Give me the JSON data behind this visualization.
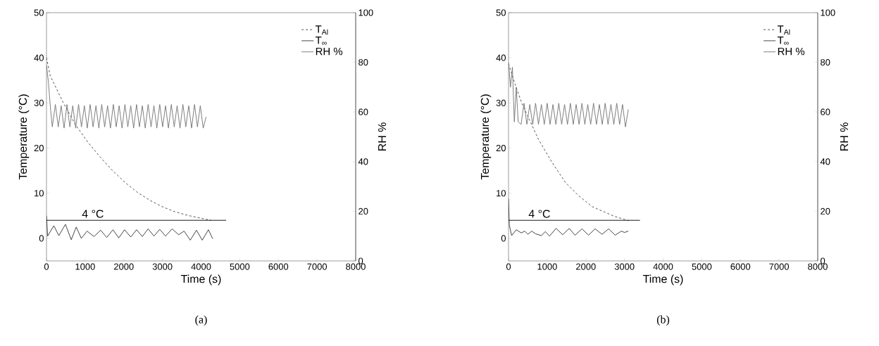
{
  "chart_data": [
    {
      "type": "line",
      "title": "(a)",
      "xlabel": "Time (s)",
      "ylabel": "Temperature (°C)",
      "y2label": "RH %",
      "xlim": [
        0,
        8000
      ],
      "xticks": [
        0,
        1000,
        2000,
        3000,
        4000,
        5000,
        6000,
        7000,
        8000
      ],
      "ylim": [
        -5,
        50
      ],
      "yticks": [
        0,
        10,
        20,
        30,
        40,
        50
      ],
      "y2lim": [
        0,
        100
      ],
      "y2ticks": [
        0,
        20,
        40,
        60,
        80,
        100
      ],
      "legend": "top right",
      "annotations": [
        {
          "text": "4 °C",
          "x": 1200,
          "y": 4
        }
      ],
      "series": [
        {
          "name": "T$_{Al}$",
          "color": "#404040",
          "line_style": "dashed",
          "x": [
            0,
            97,
            420,
            740,
            1070,
            1390,
            1710,
            2030,
            2350,
            2680,
            3000,
            3320,
            3650,
            3970,
            4260
          ],
          "values": [
            40,
            36,
            30.3,
            25.3,
            21.3,
            18,
            15,
            12.4,
            10.2,
            8.4,
            7,
            5.9,
            5.1,
            4.5,
            4.0
          ]
        },
        {
          "name": "T$_{∞}$",
          "color": "#303030",
          "line_style": "solid",
          "x": [
            0,
            30,
            190,
            320,
            490,
            640,
            770,
            900,
            1050,
            1230,
            1400,
            1560,
            1720,
            1870,
            2020,
            2180,
            2330,
            2480,
            2630,
            2780,
            2930,
            3080,
            3250,
            3420,
            3560,
            3720,
            3880,
            4030,
            4190,
            4300
          ],
          "values": [
            5,
            0.5,
            2.8,
            0.6,
            3.1,
            -0.3,
            2.5,
            0,
            1.6,
            0.4,
            1.8,
            0.2,
            1.9,
            0.1,
            1.9,
            0.3,
            1.9,
            0.4,
            2.1,
            0.5,
            2.0,
            0.5,
            2.1,
            0.8,
            1.6,
            -0.4,
            1.8,
            -0.4,
            1.9,
            -0.1
          ]
        },
        {
          "name": "RH %",
          "color": "#707070",
          "line_style": "solid",
          "axis": "y2",
          "x": [
            0,
            50,
            100,
            150,
            230,
            305,
            380,
            455,
            530,
            605,
            680,
            755,
            830,
            905,
            980,
            1055,
            1130,
            1205,
            1280,
            1355,
            1430,
            1505,
            1580,
            1655,
            1730,
            1805,
            1880,
            1955,
            2030,
            2105,
            2180,
            2255,
            2330,
            2405,
            2480,
            2555,
            2630,
            2705,
            2780,
            2855,
            2930,
            3005,
            3080,
            3155,
            3230,
            3305,
            3380,
            3455,
            3530,
            3605,
            3680,
            3755,
            3830,
            3905,
            3980,
            4055,
            4130
          ],
          "values": [
            79,
            72,
            62,
            54,
            63,
            54,
            62.5,
            53.5,
            63,
            54,
            62.5,
            53.5,
            63,
            54,
            62.5,
            53.5,
            63,
            54,
            62.5,
            53.5,
            63,
            54,
            62.5,
            53.5,
            63,
            54,
            62.5,
            53.5,
            63,
            54,
            62.5,
            53.5,
            63,
            54,
            62.5,
            53.5,
            63,
            54,
            62.5,
            53.5,
            63,
            54,
            62.5,
            53.5,
            63,
            54,
            62.5,
            53.5,
            63,
            54,
            62.5,
            53.5,
            63,
            54,
            62.5,
            53.5,
            58
          ]
        },
        {
          "color": "#000000",
          "line_style": "solid",
          "x": [
            0,
            4650
          ],
          "values": [
            4,
            4
          ]
        }
      ]
    },
    {
      "type": "line",
      "title": "(b)",
      "xlabel": "Time (s)",
      "ylabel": "Temperature (°C)",
      "y2label": "RH %",
      "xlim": [
        0,
        8000
      ],
      "xticks": [
        0,
        1000,
        2000,
        3000,
        4000,
        5000,
        6000,
        7000,
        8000
      ],
      "ylim": [
        -5,
        50
      ],
      "yticks": [
        0,
        10,
        20,
        30,
        40,
        50
      ],
      "y2lim": [
        0,
        100
      ],
      "y2ticks": [
        0,
        20,
        40,
        60,
        80,
        100
      ],
      "legend": "top right",
      "annotations": [
        {
          "text": "4 °C",
          "x": 800,
          "y": 4
        }
      ],
      "series": [
        {
          "name": "T$_{Al}$",
          "color": "#404040",
          "line_style": "dashed",
          "x": [
            0,
            175,
            350,
            770,
            1120,
            1470,
            1820,
            2170,
            2730,
            3110
          ],
          "values": [
            38.7,
            34,
            29.8,
            22,
            16.9,
            12.4,
            9.4,
            7,
            4.9,
            3.9
          ]
        },
        {
          "name": "T$_{∞}$",
          "color": "#303030",
          "line_style": "solid",
          "x": [
            0,
            20,
            80,
            200,
            330,
            420,
            500,
            600,
            700,
            850,
            950,
            1060,
            1230,
            1400,
            1570,
            1720,
            1900,
            2070,
            2240,
            2420,
            2590,
            2760,
            2920,
            3000,
            3100
          ],
          "values": [
            8.8,
            3,
            0.6,
            1.9,
            1.2,
            1.6,
            0.9,
            1.6,
            1.0,
            0.6,
            1.5,
            0.5,
            2.2,
            0.8,
            2.2,
            0.7,
            2.1,
            0.7,
            2.1,
            0.9,
            2.1,
            0.7,
            1.6,
            1.3,
            1.6
          ]
        },
        {
          "name": "RH %",
          "color": "#707070",
          "line_style": "solid",
          "axis": "y2",
          "x": [
            0,
            50,
            100,
            150,
            200,
            250,
            325,
            400,
            475,
            550,
            625,
            700,
            775,
            850,
            925,
            1000,
            1075,
            1150,
            1225,
            1300,
            1375,
            1450,
            1525,
            1600,
            1675,
            1750,
            1825,
            1900,
            1975,
            2050,
            2125,
            2200,
            2275,
            2350,
            2425,
            2500,
            2575,
            2650,
            2725,
            2800,
            2875,
            2950,
            3025,
            3100
          ],
          "values": [
            80,
            70,
            78,
            56,
            70,
            56,
            55,
            63.5,
            55,
            63,
            55,
            63.5,
            55,
            63,
            55,
            63.5,
            55,
            63,
            55,
            63.5,
            55,
            63,
            55,
            63.5,
            55,
            63,
            55,
            63.5,
            55,
            63,
            55,
            63.5,
            55,
            63,
            55,
            63.5,
            55,
            63,
            55,
            63.5,
            55,
            63,
            54,
            61
          ]
        },
        {
          "color": "#000000",
          "line_style": "solid",
          "x": [
            0,
            3400
          ],
          "values": [
            4,
            4
          ]
        }
      ]
    }
  ]
}
